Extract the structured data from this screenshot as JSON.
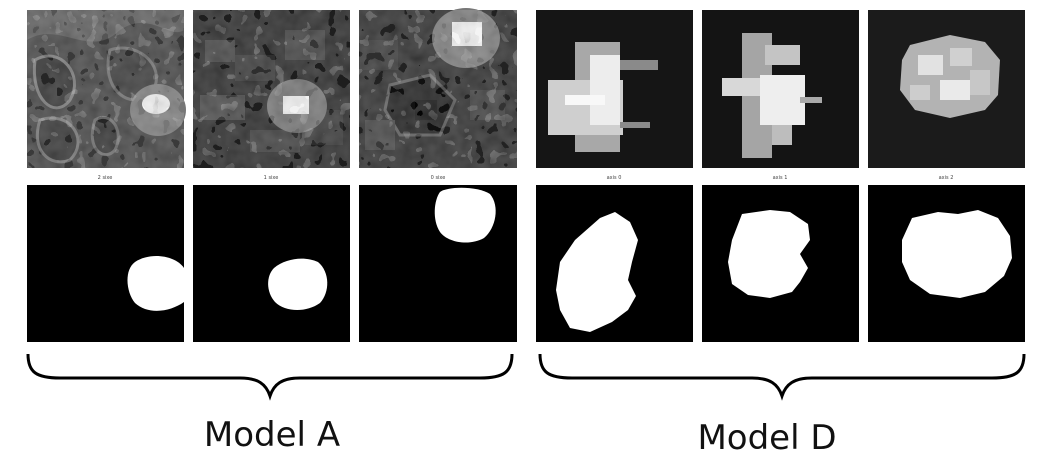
{
  "group_a": {
    "title": "Model A",
    "panel_labels": [
      "2 sixe",
      "1 sixe",
      "0 sixe"
    ]
  },
  "group_d": {
    "title": "Model D",
    "panel_labels": [
      "axis 0",
      "axis 1",
      "axis 2"
    ]
  },
  "colors": {
    "background": "#ffffff",
    "panel_black": "#000000",
    "mask_white": "#ffffff",
    "brace": "#000000"
  }
}
